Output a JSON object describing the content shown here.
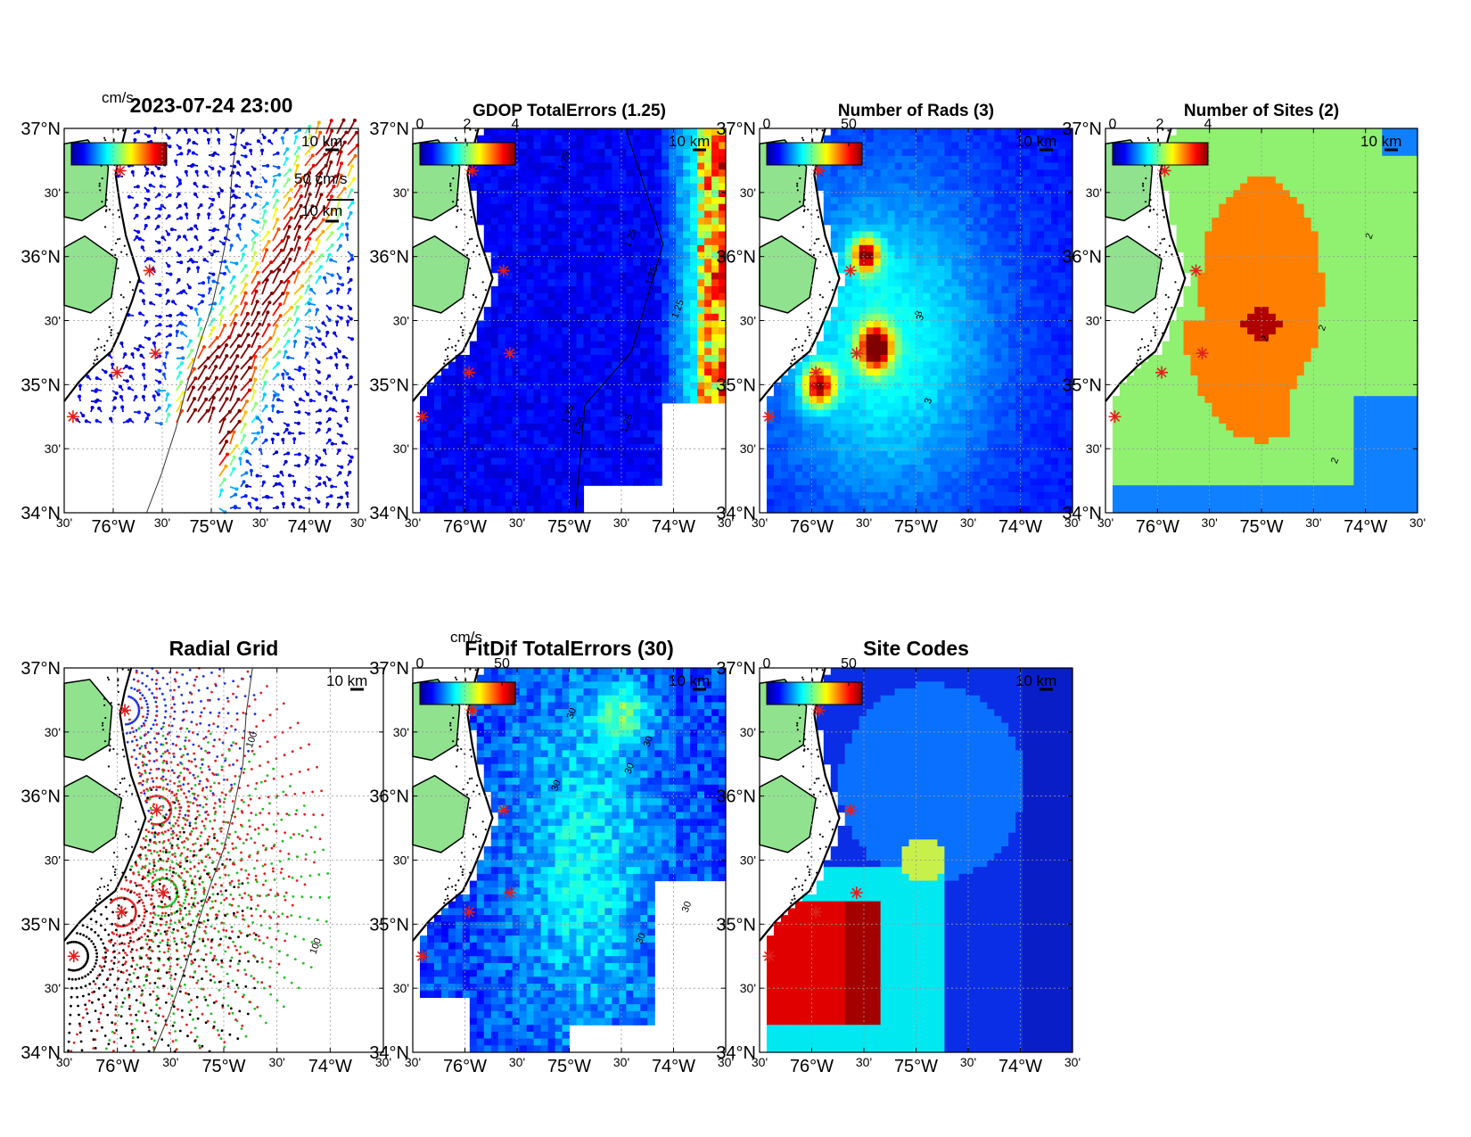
{
  "figure": {
    "lat_ticks": [
      "37°N",
      "30'",
      "36°N",
      "30'",
      "35°N",
      "30'",
      "34°N"
    ],
    "lon_ticks": [
      "30'",
      "76°W",
      "30'",
      "75°W",
      "30'",
      "74°W",
      "30'"
    ],
    "scale_label": "10 km",
    "ocean_color": "#ffffff",
    "land_color": "#90e28f",
    "site_marker_color": "#e0201c"
  },
  "panels": [
    {
      "key": "total_currents",
      "title": "2023-07-24 23:00",
      "cbar_unit": "cm/s",
      "cbar_ticks": [],
      "arrow_label": "50 cm/s"
    },
    {
      "key": "gdop",
      "title": "GDOP TotalErrors (1.25)",
      "cbar_unit": "",
      "cbar_ticks": [
        "0",
        "2",
        "4"
      ],
      "contour_labels": [
        "1.25",
        "1.25",
        "1.25",
        "1.25",
        "1.25",
        "1.25",
        "1.25"
      ]
    },
    {
      "key": "num_rads",
      "title": "Number of Rads (3)",
      "cbar_unit": "",
      "cbar_ticks": [
        "0",
        "50"
      ],
      "contour_labels": [
        "3",
        "3",
        "3"
      ]
    },
    {
      "key": "num_sites",
      "title": "Number of Sites (2)",
      "cbar_unit": "",
      "cbar_ticks": [
        "0",
        "2",
        "4"
      ],
      "contour_labels": [
        "2",
        "2",
        "2",
        "2"
      ]
    },
    {
      "key": "radial_grid",
      "title": "Radial Grid",
      "contour_labels": [
        "100",
        "100"
      ]
    },
    {
      "key": "fitdif",
      "title": "FitDif TotalErrors (30)",
      "cbar_unit": "cm/s",
      "cbar_ticks": [
        "0",
        "50"
      ],
      "contour_labels": [
        "30",
        "30",
        "30",
        "30",
        "30",
        "30"
      ]
    },
    {
      "key": "site_codes",
      "title": "Site Codes",
      "cbar_unit": "",
      "cbar_ticks": [
        "0",
        "50"
      ]
    }
  ],
  "chart_data": [
    {
      "type": "heatmap",
      "panel": "total_currents",
      "field": "surface current vectors",
      "unit": "cm/s",
      "reference_arrow": 50,
      "xlim": [
        -76.5,
        -73.5
      ],
      "ylim": [
        34,
        37
      ],
      "features": [
        "fast northeastward Gulf Stream jet > 50 cm/s offshore",
        "weak currents < 15 cm/s over the shelf",
        "high speed filament near 35.1°N 75.3°W"
      ]
    },
    {
      "type": "heatmap",
      "panel": "gdop",
      "field": "GDOP total error",
      "colorbar_range": [
        0,
        4
      ],
      "contour_level": 1.25,
      "xlim": [
        -76.5,
        -73.5
      ],
      "ylim": [
        34,
        37
      ],
      "features": [
        "values below 1 over most of the interior",
        "values 2–4 along the eastern edge"
      ]
    },
    {
      "type": "heatmap",
      "panel": "num_rads",
      "field": "number of radials",
      "colorbar_range": [
        0,
        60
      ],
      "contour_level": 3,
      "xlim": [
        -76.5,
        -73.5
      ],
      "ylim": [
        34,
        37
      ],
      "peaks": [
        {
          "lon": -75.4,
          "lat": 35.9,
          "value": 45
        },
        {
          "lon": -75.1,
          "lat": 35.3,
          "value": 50
        },
        {
          "lon": -75.9,
          "lat": 35.0,
          "value": 40
        }
      ]
    },
    {
      "type": "heatmap",
      "panel": "num_sites",
      "field": "number of sites",
      "colorbar_range": [
        0,
        4
      ],
      "contour_level": 2,
      "xlim": [
        -76.5,
        -73.5
      ],
      "ylim": [
        34,
        37
      ],
      "class_colors": {
        "1": "#0f80ff",
        "2": "#90f070",
        "3": "#ff7f00",
        "4": "#b00000"
      }
    },
    {
      "type": "scatter",
      "panel": "radial_grid",
      "field": "radial grid points per site",
      "xlim": [
        -76.5,
        -73.5
      ],
      "ylim": [
        34,
        37
      ],
      "sites": [
        {
          "lon": -75.95,
          "lat": 36.4,
          "color": "#2030e0"
        },
        {
          "lon": -75.5,
          "lat": 35.9,
          "color": "#e02020"
        },
        {
          "lon": -75.5,
          "lat": 35.27,
          "color": "#20c020"
        },
        {
          "lon": -75.95,
          "lat": 35.13,
          "color": "#e02020"
        },
        {
          "lon": -76.45,
          "lat": 34.95,
          "color": "#000000"
        }
      ]
    },
    {
      "type": "heatmap",
      "panel": "fitdif",
      "field": "FitDif total error",
      "unit": "cm/s",
      "colorbar_range": [
        0,
        60
      ],
      "contour_level": 30,
      "xlim": [
        -76.5,
        -73.5
      ],
      "ylim": [
        34,
        37
      ]
    },
    {
      "type": "heatmap",
      "panel": "site_codes",
      "field": "site code combination",
      "colorbar_range": [
        0,
        60
      ],
      "xlim": [
        -76.5,
        -73.5
      ],
      "ylim": [
        34,
        37
      ]
    }
  ]
}
